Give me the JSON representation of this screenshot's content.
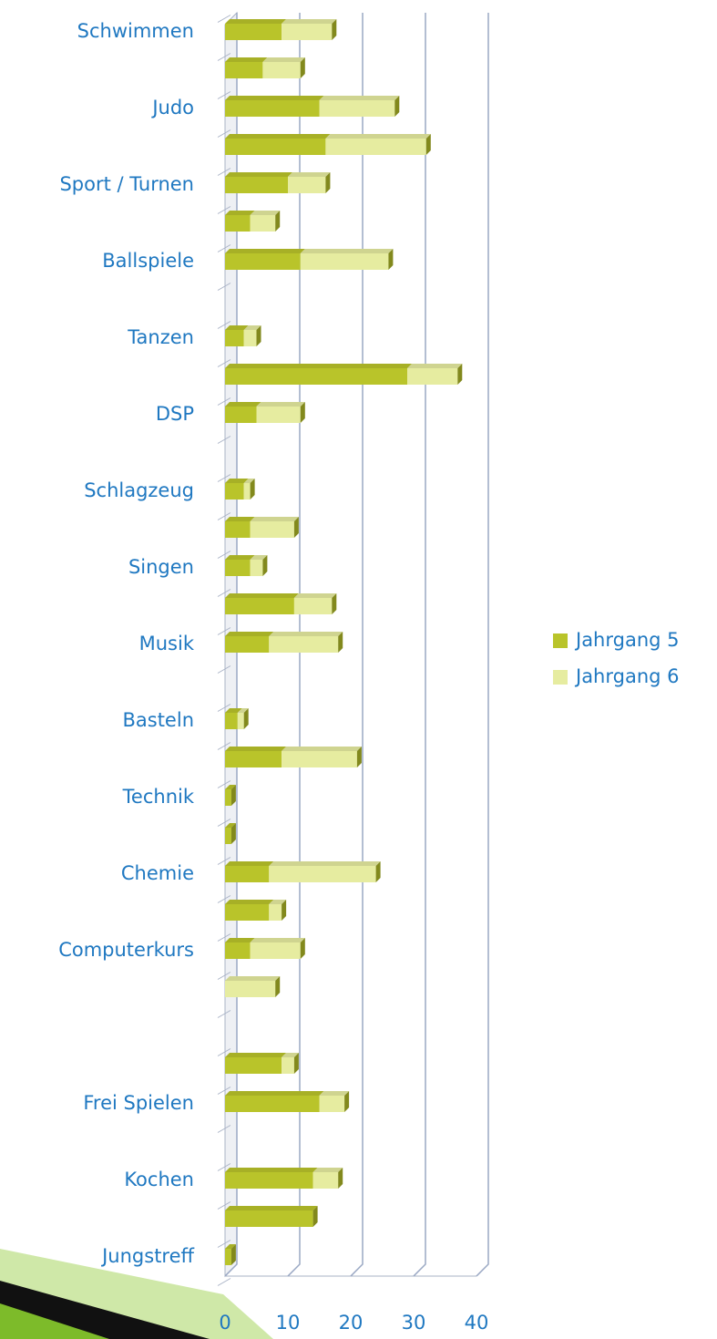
{
  "chart_data": {
    "type": "bar",
    "orientation": "horizontal",
    "stacked": true,
    "categories": [
      "Schwimmen",
      null,
      "Judo",
      null,
      "Sport / Turnen",
      null,
      "Ballspiele",
      null,
      "Tanzen",
      null,
      "DSP",
      null,
      "Schlagzeug",
      null,
      "Singen",
      null,
      "Musik",
      null,
      "Basteln",
      null,
      "Technik",
      null,
      "Chemie",
      null,
      "Computerkurs",
      null,
      null,
      null,
      "Frei Spielen",
      null,
      "Kochen",
      null,
      "Jungstreff"
    ],
    "series": [
      {
        "name": "Jahrgang 5",
        "color": "#b9c42a",
        "values": [
          9,
          6,
          15,
          16,
          10,
          4,
          12,
          0,
          3,
          29,
          5,
          0,
          3,
          4,
          4,
          11,
          7,
          0,
          2,
          9,
          1,
          1,
          7,
          7,
          4,
          0,
          0,
          9,
          15,
          0,
          14,
          14,
          1
        ]
      },
      {
        "name": "Jahrgang 6",
        "color": "#e6eca0",
        "values": [
          8,
          6,
          12,
          16,
          6,
          4,
          14,
          0,
          2,
          8,
          7,
          0,
          1,
          7,
          2,
          6,
          11,
          0,
          1,
          12,
          0,
          0,
          17,
          2,
          8,
          8,
          0,
          2,
          4,
          0,
          4,
          0,
          0
        ]
      }
    ],
    "xlim": [
      0,
      40
    ],
    "xticks": [
      0,
      10,
      20,
      30,
      40
    ],
    "grid": true,
    "legend": "right"
  }
}
